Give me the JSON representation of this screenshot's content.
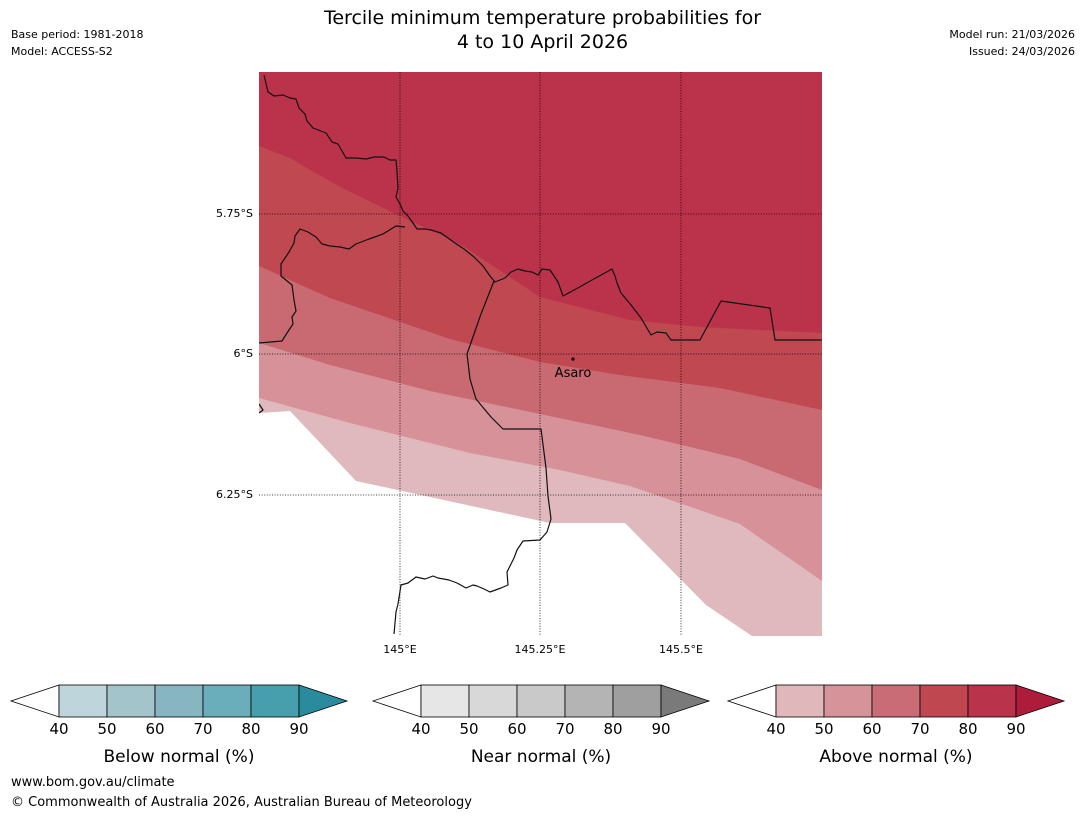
{
  "title": {
    "line1": "Tercile minimum temperature probabilities for",
    "line2": "4 to 10 April 2026"
  },
  "header_left": {
    "base_period": "Base period: 1981-2018",
    "model": "Model: ACCESS-S2"
  },
  "header_right": {
    "model_run": "Model run: 21/03/2026",
    "issued": "Issued: 24/03/2026"
  },
  "map": {
    "lon_labels": [
      "145°E",
      "145.25°E",
      "145.5°E"
    ],
    "lat_labels": [
      "5.75°S",
      "6°S",
      "6.25°S"
    ],
    "place": {
      "name": "Asaro"
    },
    "probability_bands_above_normal_pct": [
      "40-50",
      "50-60",
      "60-70",
      "70-80",
      "80-90"
    ]
  },
  "colorbars": [
    {
      "label": "Below normal (%)",
      "ticks": [
        "40",
        "50",
        "60",
        "70",
        "80",
        "90"
      ],
      "colors": [
        "#bfd5dc",
        "#a4c4cb",
        "#87b5c2",
        "#6baebb",
        "#479fad",
        "#2b8b9e"
      ]
    },
    {
      "label": "Near normal (%)",
      "ticks": [
        "40",
        "50",
        "60",
        "70",
        "80",
        "90"
      ],
      "colors": [
        "#e6e6e6",
        "#d8d8d8",
        "#c9c9c9",
        "#b4b4b4",
        "#9f9f9f",
        "#7a7a7a"
      ]
    },
    {
      "label": "Above normal (%)",
      "ticks": [
        "40",
        "50",
        "60",
        "70",
        "80",
        "90"
      ],
      "colors": [
        "#e0b8bc",
        "#d6939a",
        "#ca6c75",
        "#bf4850",
        "#b9334b",
        "#ad1c3b"
      ]
    }
  ],
  "footer": {
    "url": "www.bom.gov.au/climate",
    "copyright": "© Commonwealth of Australia 2026, Australian Bureau of Meteorology"
  }
}
